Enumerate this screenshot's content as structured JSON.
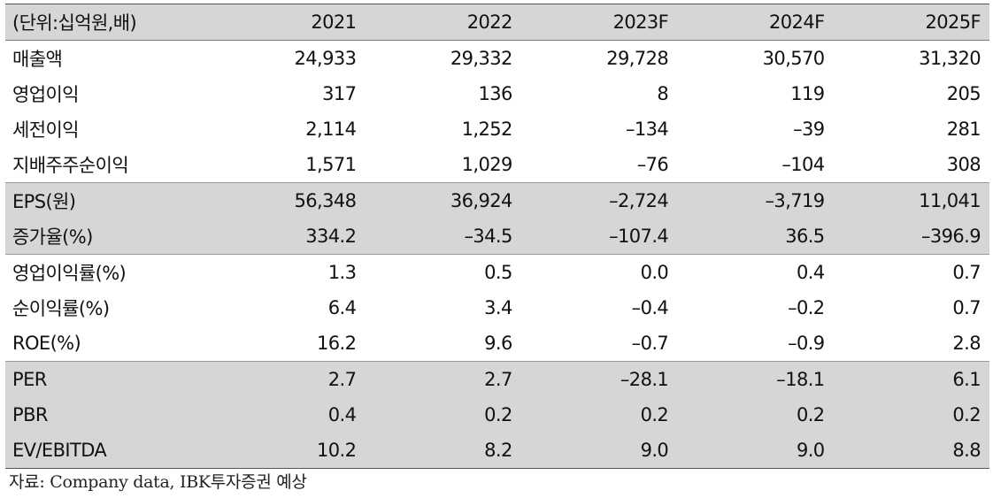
{
  "table": {
    "header": [
      "(단위:십억원,배)",
      "2021",
      "2022",
      "2023F",
      "2024F",
      "2025F"
    ],
    "rows": [
      {
        "label": "매출액",
        "values": [
          "24,933",
          "29,332",
          "29,728",
          "30,570",
          "31,320"
        ],
        "shade": false,
        "sep": false
      },
      {
        "label": "영업이익",
        "values": [
          "317",
          "136",
          "8",
          "119",
          "205"
        ],
        "shade": false,
        "sep": false
      },
      {
        "label": "세전이익",
        "values": [
          "2,114",
          "1,252",
          "–134",
          "–39",
          "281"
        ],
        "shade": false,
        "sep": false
      },
      {
        "label": "지배주주순이익",
        "values": [
          "1,571",
          "1,029",
          "–76",
          "–104",
          "308"
        ],
        "shade": false,
        "sep": false
      },
      {
        "label": "EPS(원)",
        "values": [
          "56,348",
          "36,924",
          "–2,724",
          "–3,719",
          "11,041"
        ],
        "shade": true,
        "sep": true
      },
      {
        "label": "증가율(%)",
        "values": [
          "334.2",
          "–34.5",
          "–107.4",
          "36.5",
          "–396.9"
        ],
        "shade": true,
        "sep": false
      },
      {
        "label": "영업이익률(%)",
        "values": [
          "1.3",
          "0.5",
          "0.0",
          "0.4",
          "0.7"
        ],
        "shade": false,
        "sep": true
      },
      {
        "label": "순이익률(%)",
        "values": [
          "6.4",
          "3.4",
          "–0.4",
          "–0.2",
          "0.7"
        ],
        "shade": false,
        "sep": false
      },
      {
        "label": "ROE(%)",
        "values": [
          "16.2",
          "9.6",
          "–0.7",
          "–0.9",
          "2.8"
        ],
        "shade": false,
        "sep": false
      },
      {
        "label": "PER",
        "values": [
          "2.7",
          "2.7",
          "–28.1",
          "–18.1",
          "6.1"
        ],
        "shade": true,
        "sep": true
      },
      {
        "label": "PBR",
        "values": [
          "0.4",
          "0.2",
          "0.2",
          "0.2",
          "0.2"
        ],
        "shade": true,
        "sep": false
      },
      {
        "label": "EV/EBITDA",
        "values": [
          "10.2",
          "8.2",
          "9.0",
          "9.0",
          "8.8"
        ],
        "shade": true,
        "sep": false
      }
    ]
  },
  "source": "자료: Company data, IBK투자증권 예상"
}
